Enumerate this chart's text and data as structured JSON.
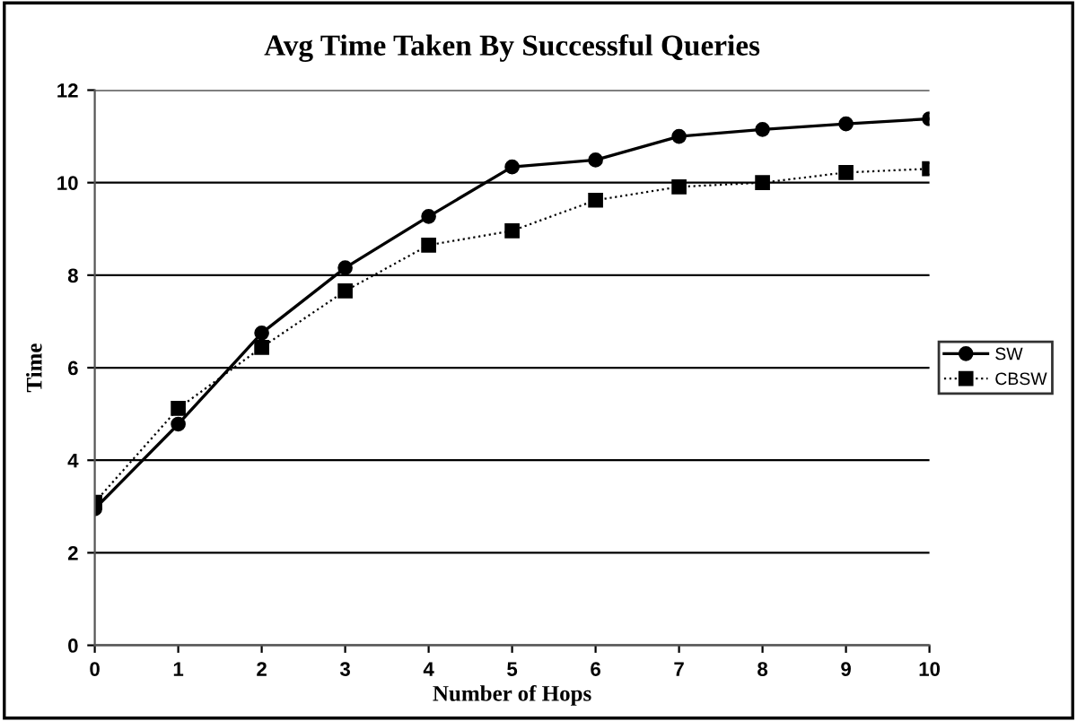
{
  "chart_data": {
    "type": "line",
    "title": "Avg Time Taken By Successful Queries",
    "xlabel": "Number of Hops",
    "ylabel": "Time",
    "x": [
      0,
      1,
      2,
      3,
      4,
      5,
      6,
      7,
      8,
      9,
      10
    ],
    "series": [
      {
        "name": "SW",
        "color": "#000000",
        "values": [
          2.95,
          4.78,
          6.75,
          8.16,
          9.27,
          10.34,
          10.49,
          11.0,
          11.15,
          11.27,
          11.38
        ],
        "marker": "circle",
        "line_style": "solid"
      },
      {
        "name": "CBSW",
        "color": "#000000",
        "values": [
          3.09,
          5.12,
          6.44,
          7.66,
          8.65,
          8.96,
          9.62,
          9.91,
          10.0,
          10.22,
          10.3
        ],
        "marker": "square",
        "line_style": "dotted"
      }
    ],
    "xlim": [
      0,
      10
    ],
    "xticks": [
      0,
      1,
      2,
      3,
      4,
      5,
      6,
      7,
      8,
      9,
      10
    ],
    "ylim": [
      0,
      12
    ],
    "yticks": [
      0,
      2,
      4,
      6,
      8,
      10,
      12
    ],
    "grid": "y",
    "legend": "right"
  }
}
